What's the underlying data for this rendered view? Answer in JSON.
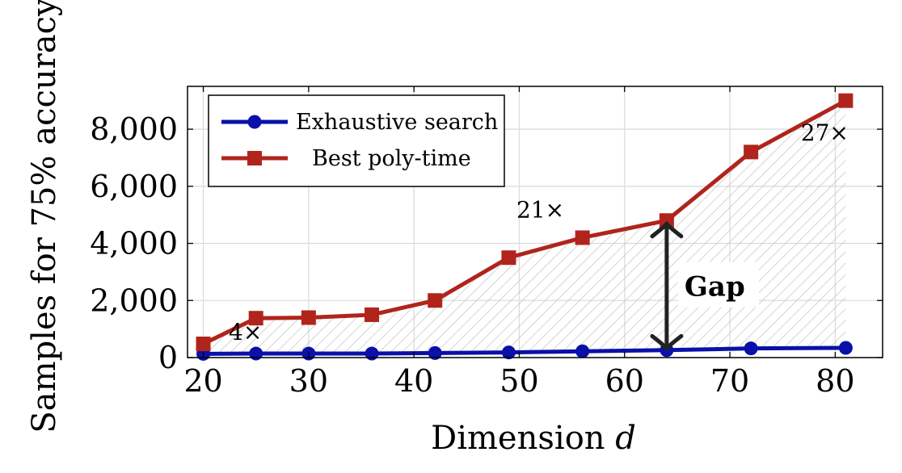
{
  "chart_data": {
    "type": "line",
    "xlabel": "Dimension d",
    "xlabel_base": "Dimension ",
    "xlabel_var": "d",
    "ylabel": "Samples for 75% accuracy",
    "xlim": [
      18.5,
      84.5
    ],
    "ylim": [
      0,
      9500
    ],
    "x_ticks": [
      20,
      30,
      40,
      50,
      60,
      70,
      80
    ],
    "x_tick_labels": [
      "20",
      "30",
      "40",
      "50",
      "60",
      "70",
      "80"
    ],
    "y_ticks": [
      0,
      2000,
      4000,
      6000,
      8000
    ],
    "y_tick_labels": [
      "0",
      "2,000",
      "4,000",
      "6,000",
      "8,000"
    ],
    "grid": true,
    "legend_position": "top-left",
    "series": [
      {
        "name": "Exhaustive search",
        "color": "#0a10a8",
        "marker": "circle",
        "x": [
          20,
          25,
          30,
          36,
          42,
          49,
          56,
          64,
          72,
          81
        ],
        "y": [
          130,
          140,
          140,
          140,
          160,
          180,
          220,
          260,
          320,
          340
        ]
      },
      {
        "name": "Best poly-time",
        "color": "#b0241c",
        "marker": "square",
        "x": [
          20,
          25,
          30,
          36,
          42,
          49,
          56,
          64,
          72,
          81
        ],
        "y": [
          480,
          1380,
          1400,
          1500,
          2000,
          3500,
          4200,
          4800,
          7200,
          9000
        ]
      }
    ],
    "annotations": [
      {
        "text": "4×",
        "x": 24,
        "y": 620
      },
      {
        "text": "21×",
        "x": 52,
        "y": 4900
      },
      {
        "text": "27×",
        "x": 79,
        "y": 7600
      }
    ],
    "gap": {
      "label": "Gap",
      "x": 64,
      "y_low": 300,
      "y_high": 4700
    }
  }
}
